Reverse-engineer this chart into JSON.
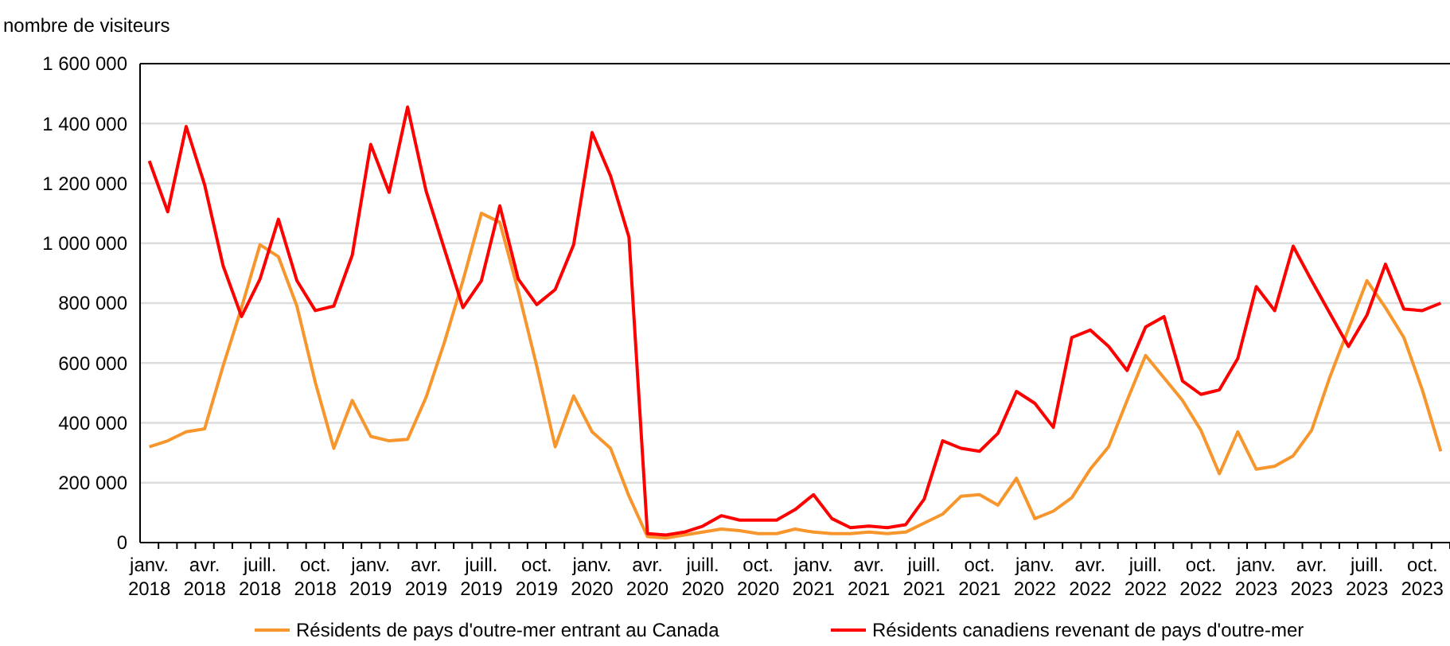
{
  "chart_data": {
    "type": "line",
    "ylabel": "nombre de visiteurs",
    "categories": [
      "janv.\n2018",
      null,
      null,
      "avr.\n2018",
      null,
      null,
      "juill.\n2018",
      null,
      null,
      "oct.\n2018",
      null,
      null,
      "janv.\n2019",
      null,
      null,
      "avr.\n2019",
      null,
      null,
      "juill.\n2019",
      null,
      null,
      "oct.\n2019",
      null,
      null,
      "janv.\n2020",
      null,
      null,
      "avr.\n2020",
      null,
      null,
      "juill.\n2020",
      null,
      null,
      "oct.\n2020",
      null,
      null,
      "janv.\n2021",
      null,
      null,
      "avr.\n2021",
      null,
      null,
      "juill.\n2021",
      null,
      null,
      "oct.\n2021",
      null,
      null,
      "janv.\n2022",
      null,
      null,
      "avr.\n2022",
      null,
      null,
      "juill.\n2022",
      null,
      null,
      "oct.\n2022",
      null,
      null,
      "janv.\n2023",
      null,
      null,
      "avr.\n2023",
      null,
      null,
      "juill.\n2023",
      null,
      null,
      "oct.\n2023",
      null
    ],
    "series": [
      {
        "name": "Résidents de pays d'outre-mer entrant au Canada",
        "color": "#f7962d",
        "values": [
          320000,
          340000,
          370000,
          380000,
          590000,
          785000,
          995000,
          955000,
          790000,
          535000,
          315000,
          475000,
          355000,
          340000,
          345000,
          485000,
          670000,
          875000,
          1100000,
          1070000,
          840000,
          590000,
          320000,
          490000,
          370000,
          315000,
          155000,
          20000,
          15000,
          25000,
          35000,
          45000,
          40000,
          30000,
          30000,
          45000,
          35000,
          30000,
          30000,
          35000,
          30000,
          35000,
          65000,
          95000,
          155000,
          160000,
          125000,
          215000,
          80000,
          105000,
          150000,
          245000,
          320000,
          475000,
          625000,
          550000,
          475000,
          375000,
          230000,
          370000,
          245000,
          255000,
          290000,
          375000,
          555000,
          715000,
          875000,
          785000,
          685000,
          510000,
          305000
        ]
      },
      {
        "name": "Résidents canadiens revenant de pays d'outre-mer",
        "color": "#ff0000",
        "values": [
          1275000,
          1105000,
          1390000,
          1195000,
          925000,
          755000,
          880000,
          1080000,
          875000,
          775000,
          790000,
          960000,
          1330000,
          1170000,
          1455000,
          1175000,
          980000,
          785000,
          875000,
          1125000,
          880000,
          795000,
          845000,
          995000,
          1370000,
          1225000,
          1020000,
          30000,
          25000,
          35000,
          55000,
          90000,
          75000,
          75000,
          75000,
          110000,
          160000,
          80000,
          50000,
          55000,
          50000,
          60000,
          145000,
          340000,
          315000,
          305000,
          365000,
          505000,
          465000,
          385000,
          685000,
          710000,
          655000,
          575000,
          720000,
          755000,
          540000,
          495000,
          510000,
          615000,
          855000,
          775000,
          990000,
          875000,
          765000,
          655000,
          760000,
          930000,
          780000,
          775000,
          800000
        ]
      }
    ],
    "ylim": [
      0,
      1600000
    ],
    "yticks": [
      0,
      {
        "value": 200000,
        "label": "200 000"
      },
      {
        "value": 400000,
        "label": "400 000"
      },
      {
        "value": 600000,
        "label": "600 000"
      },
      {
        "value": 800000,
        "label": "800 000"
      },
      {
        "value": 1000000,
        "label": "1 000 000"
      },
      {
        "value": 1200000,
        "label": "1 200 000"
      },
      {
        "value": 1400000,
        "label": "1 400 000"
      },
      {
        "value": 1600000,
        "label": "1 600 000"
      }
    ],
    "grid": "y",
    "legend": "bottom",
    "marker": "none",
    "line_style": "solid"
  }
}
